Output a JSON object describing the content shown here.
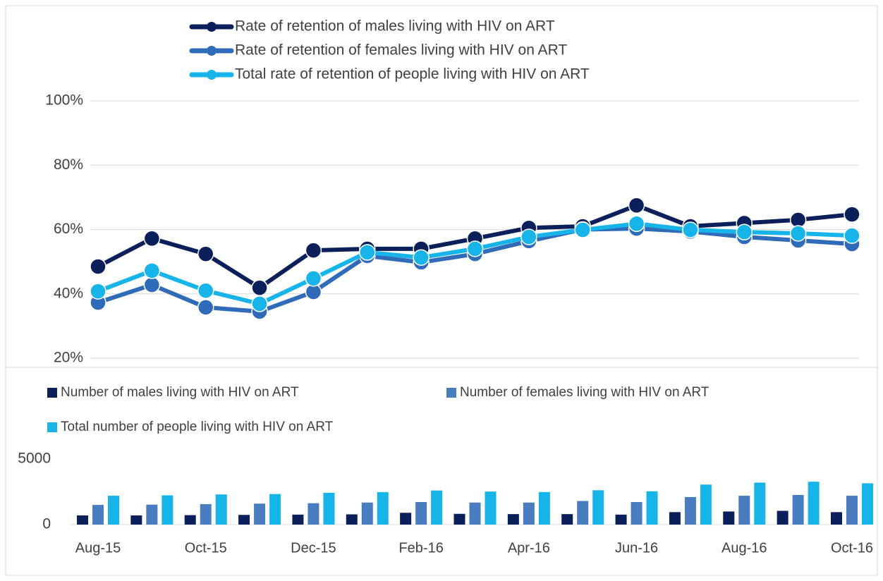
{
  "chart_data": [
    {
      "type": "line",
      "ylim": [
        20,
        100
      ],
      "yticks": [
        {
          "value": 20,
          "label": "20%"
        },
        {
          "value": 40,
          "label": "40%"
        },
        {
          "value": 60,
          "label": "60%"
        },
        {
          "value": 80,
          "label": "80%"
        },
        {
          "value": 100,
          "label": "100%"
        }
      ],
      "grid": true,
      "series": [
        {
          "name": "Rate of retention of males living with HIV on ART",
          "color": "#0b1f5b",
          "values": [
            48.5,
            57.2,
            52.4,
            41.9,
            53.5,
            54,
            54,
            57.2,
            60.5,
            61,
            67.5,
            61,
            62,
            63,
            64.7
          ]
        },
        {
          "name": "Rate of retention of females living with HIV on ART",
          "color": "#2f6bb8",
          "values": [
            37.3,
            42.8,
            35.8,
            34.5,
            40.6,
            51.8,
            49.8,
            52.4,
            56.4,
            60,
            60.3,
            59.4,
            57.7,
            56.6,
            55.5
          ]
        },
        {
          "name": "Total rate of retention of people living with HIV on ART",
          "color": "#17b4ea",
          "values": [
            40.8,
            47.2,
            41,
            36.9,
            44.8,
            52.9,
            51.3,
            54,
            57.7,
            59.9,
            61.8,
            59.9,
            59.2,
            58.8,
            58.1
          ]
        }
      ]
    },
    {
      "type": "bar",
      "categories": [
        "Aug-15",
        null,
        "Oct-15",
        null,
        "Dec-15",
        null,
        "Feb-16",
        null,
        "Apr-16",
        null,
        "Jun-16",
        null,
        "Aug-16",
        null,
        "Oct-16"
      ],
      "ylim": [
        0,
        5000
      ],
      "yticks": [
        0,
        5000
      ],
      "series": [
        {
          "name": "Number of males living with HIV on ART",
          "color": "#0b1f5b",
          "values": [
            700,
            700,
            720,
            740,
            760,
            780,
            900,
            820,
            800,
            800,
            760,
            950,
            1000,
            1050,
            950
          ]
        },
        {
          "name": "Number of females living with HIV on ART",
          "color": "#4a7cc0",
          "values": [
            1500,
            1520,
            1560,
            1600,
            1630,
            1680,
            1720,
            1680,
            1680,
            1800,
            1720,
            2100,
            2200,
            2260,
            2200
          ]
        },
        {
          "name": "Total number of people living with HIV on ART",
          "color": "#17b4ea",
          "values": [
            2200,
            2230,
            2300,
            2330,
            2420,
            2470,
            2600,
            2520,
            2480,
            2620,
            2540,
            3050,
            3200,
            3270,
            3150
          ]
        }
      ]
    }
  ]
}
